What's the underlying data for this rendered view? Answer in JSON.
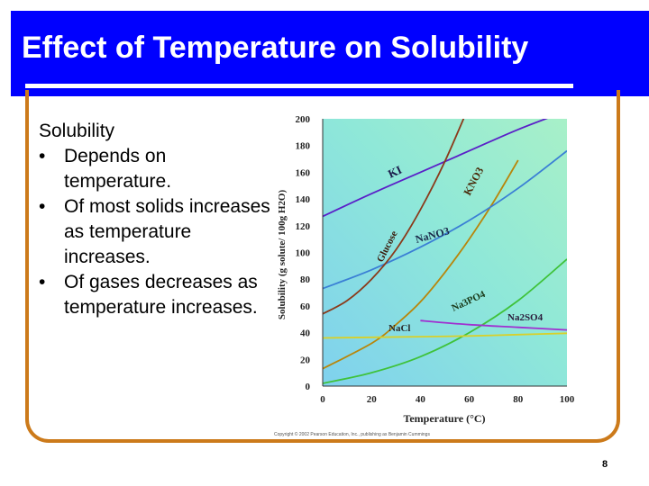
{
  "slide": {
    "title": "Effect of Temperature on Solubility",
    "heading": "Solubility",
    "bullets": [
      "Depends on temperature.",
      "Of most solids increases as temperature increases.",
      "Of gases decreases as temperature increases."
    ],
    "page_number": "8",
    "colors": {
      "title_bar": "#0000ff",
      "frame": "#cc7a1a"
    }
  },
  "chart_data": {
    "type": "line",
    "xlabel": "Temperature (°C)",
    "ylabel": "Solubility (g solute/ 100g H2O)",
    "xlim": [
      0,
      100
    ],
    "ylim": [
      0,
      200
    ],
    "xticks": [
      0,
      20,
      40,
      60,
      80,
      100
    ],
    "yticks": [
      0,
      20,
      40,
      60,
      80,
      100,
      120,
      140,
      160,
      180,
      200
    ],
    "grid": false,
    "copyright": "Copyright © 2002 Pearson Education, Inc., publishing as Benjamin Cummings",
    "series": [
      {
        "name": "KI",
        "color": "#5a1fc8",
        "x": [
          0,
          20,
          40,
          60,
          80,
          100
        ],
        "y": [
          127,
          144,
          160,
          176,
          192,
          206
        ]
      },
      {
        "name": "KNO3",
        "color": "#b8860b",
        "x": [
          0,
          20,
          30,
          40,
          50,
          60,
          70,
          80
        ],
        "y": [
          13,
          32,
          46,
          63,
          85,
          110,
          138,
          169
        ]
      },
      {
        "name": "NaNO3",
        "color": "#3a7fd5",
        "x": [
          0,
          20,
          40,
          60,
          80,
          100
        ],
        "y": [
          73,
          87,
          104,
          124,
          148,
          176
        ]
      },
      {
        "name": "Glucose",
        "color": "#8b3a1a",
        "x": [
          0,
          10,
          20,
          30,
          40,
          50,
          60
        ],
        "y": [
          54,
          64,
          80,
          102,
          132,
          168,
          210
        ]
      },
      {
        "name": "Na3PO4",
        "color": "#3fc23a",
        "x": [
          0,
          20,
          40,
          60,
          80,
          100
        ],
        "y": [
          2,
          10,
          22,
          40,
          64,
          95
        ]
      },
      {
        "name": "NaCl",
        "color": "#d8d02a",
        "x": [
          0,
          20,
          40,
          60,
          80,
          100
        ],
        "y": [
          36,
          36.5,
          37,
          37.5,
          38.5,
          39.5
        ]
      },
      {
        "name": "Na2SO4",
        "color": "#a030d0",
        "x": [
          40,
          60,
          80,
          100
        ],
        "y": [
          49,
          46,
          44,
          42
        ]
      }
    ]
  }
}
